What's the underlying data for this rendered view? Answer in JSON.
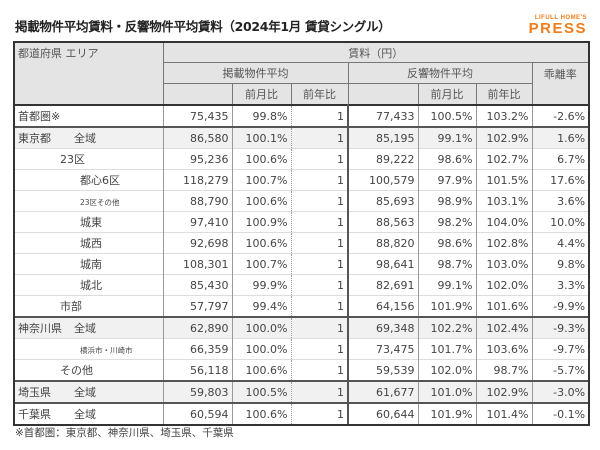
{
  "title": "掲載物件平均賃料・反響物件平均賃料（2024年1月 賃貸シングル）",
  "logo": {
    "small": "LIFULL HOME'S",
    "big": "PRESS"
  },
  "colors": {
    "brand": "#f07d1a",
    "header_bg": "#e4e4e4"
  },
  "header": {
    "area": "都道府県 エリア",
    "rent": "賃料（円）",
    "listed": "掲載物件平均",
    "response": "反響物件平均",
    "gap": "乖離率",
    "mom": "前月比",
    "yoy": "前年比"
  },
  "rows": [
    {
      "pref": "首都圏※",
      "area": "",
      "indent": 0,
      "v": [
        "75,435",
        "99.8%",
        "1",
        "77,433",
        "100.5%",
        "103.2%",
        "-2.6%"
      ]
    },
    {
      "pref": "東京都",
      "area": "全域",
      "indent": 0,
      "v": [
        "86,580",
        "100.1%",
        "1",
        "85,195",
        "99.1%",
        "102.9%",
        "1.6%"
      ]
    },
    {
      "pref": "",
      "area": "23区",
      "indent": 1,
      "v": [
        "95,236",
        "100.6%",
        "1",
        "89,222",
        "98.6%",
        "102.7%",
        "6.7%"
      ]
    },
    {
      "pref": "",
      "area": "都心6区",
      "indent": 2,
      "v": [
        "118,279",
        "100.7%",
        "1",
        "100,579",
        "97.9%",
        "101.5%",
        "17.6%"
      ]
    },
    {
      "pref": "",
      "area": "23区その他",
      "indent": 2,
      "small": true,
      "v": [
        "88,790",
        "100.6%",
        "1",
        "85,693",
        "98.9%",
        "103.1%",
        "3.6%"
      ]
    },
    {
      "pref": "",
      "area": "城東",
      "indent": 2,
      "v": [
        "97,410",
        "100.9%",
        "1",
        "88,563",
        "98.2%",
        "104.0%",
        "10.0%"
      ]
    },
    {
      "pref": "",
      "area": "城西",
      "indent": 2,
      "v": [
        "92,698",
        "100.6%",
        "1",
        "88,820",
        "98.6%",
        "102.8%",
        "4.4%"
      ]
    },
    {
      "pref": "",
      "area": "城南",
      "indent": 2,
      "v": [
        "108,301",
        "100.7%",
        "1",
        "98,641",
        "98.7%",
        "103.0%",
        "9.8%"
      ]
    },
    {
      "pref": "",
      "area": "城北",
      "indent": 2,
      "v": [
        "85,430",
        "99.9%",
        "1",
        "82,691",
        "99.1%",
        "102.0%",
        "3.3%"
      ]
    },
    {
      "pref": "",
      "area": "市部",
      "indent": 1,
      "v": [
        "57,797",
        "99.4%",
        "1",
        "64,156",
        "101.9%",
        "101.6%",
        "-9.9%"
      ]
    },
    {
      "pref": "神奈川県",
      "area": "全域",
      "indent": 0,
      "v": [
        "62,890",
        "100.0%",
        "1",
        "69,348",
        "102.2%",
        "102.4%",
        "-9.3%"
      ]
    },
    {
      "pref": "",
      "area": "横浜市・川崎市",
      "indent": 2,
      "small": true,
      "v": [
        "66,359",
        "100.0%",
        "1",
        "73,475",
        "101.7%",
        "103.6%",
        "-9.7%"
      ]
    },
    {
      "pref": "",
      "area": "その他",
      "indent": 1,
      "v": [
        "56,118",
        "100.6%",
        "1",
        "59,539",
        "102.0%",
        "98.7%",
        "-5.7%"
      ]
    },
    {
      "pref": "埼玉県",
      "area": "全域",
      "indent": 0,
      "v": [
        "59,803",
        "100.5%",
        "1",
        "61,677",
        "101.0%",
        "102.9%",
        "-3.0%"
      ]
    },
    {
      "pref": "千葉県",
      "area": "全域",
      "indent": 0,
      "v": [
        "60,594",
        "100.6%",
        "1",
        "60,644",
        "101.9%",
        "101.4%",
        "-0.1%"
      ]
    }
  ],
  "note": "※首都圏：東京都、神奈川県、埼玉県、千葉県"
}
